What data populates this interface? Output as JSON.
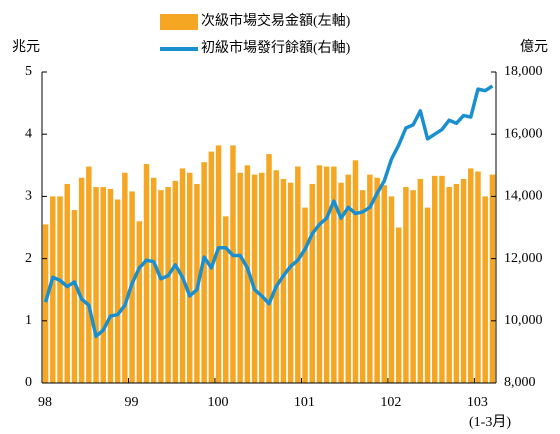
{
  "chart_data": {
    "type": "bar",
    "y_label": "兆元",
    "y2_label": "億元",
    "note": "(1-3月)",
    "categories": [
      "98",
      null,
      null,
      null,
      null,
      null,
      null,
      null,
      null,
      null,
      null,
      null,
      "99",
      null,
      null,
      null,
      null,
      null,
      null,
      null,
      null,
      null,
      null,
      null,
      "100",
      null,
      null,
      null,
      null,
      null,
      null,
      null,
      null,
      null,
      null,
      null,
      "101",
      null,
      null,
      null,
      null,
      null,
      null,
      null,
      null,
      null,
      null,
      null,
      "102",
      null,
      null,
      null,
      null,
      null,
      null,
      null,
      null,
      null,
      null,
      null,
      "103",
      null,
      null
    ],
    "series": [
      {
        "name": "次級市場交易金額(左軸)",
        "color": "#f5a623",
        "type": "bar",
        "values": [
          2.55,
          3.0,
          3.0,
          3.2,
          2.78,
          3.3,
          3.48,
          3.15,
          3.15,
          3.12,
          2.95,
          3.38,
          3.08,
          2.6,
          3.52,
          3.3,
          3.1,
          3.15,
          3.25,
          3.45,
          3.38,
          3.2,
          3.55,
          3.72,
          3.82,
          2.68,
          3.82,
          3.38,
          3.5,
          3.35,
          3.38,
          3.68,
          3.42,
          3.28,
          3.22,
          3.48,
          2.82,
          3.2,
          3.5,
          3.48,
          3.48,
          3.22,
          3.35,
          3.58,
          3.1,
          3.35,
          3.3,
          3.18,
          3.0,
          2.5,
          3.15,
          3.1,
          3.28,
          2.82,
          3.33,
          3.33,
          3.15,
          3.2,
          3.28,
          3.45,
          3.4,
          3.0,
          3.35
        ]
      },
      {
        "name": "初級市場發行餘額(右軸)",
        "color": "#1a8fd0",
        "type": "line",
        "axis": "y2",
        "values": [
          10600,
          11400,
          11300,
          11100,
          11250,
          10700,
          10500,
          9500,
          9700,
          10150,
          10200,
          10500,
          11200,
          11700,
          11950,
          11900,
          11350,
          11450,
          11800,
          11400,
          10800,
          11000,
          12050,
          11700,
          12350,
          12350,
          12100,
          12100,
          11700,
          11000,
          10800,
          10550,
          11100,
          11450,
          11750,
          11950,
          12300,
          12800,
          13100,
          13300,
          13850,
          13300,
          13650,
          13450,
          13500,
          13650,
          14100,
          14500,
          15200,
          15650,
          16200,
          16300,
          16750,
          15850,
          16000,
          16150,
          16450,
          16350,
          16600,
          16550,
          17450,
          17400,
          17550
        ]
      }
    ],
    "ylim": [
      0,
      5
    ],
    "yticks": [
      0,
      1,
      2,
      3,
      4,
      5
    ],
    "y2lim": [
      8000,
      18000
    ],
    "y2ticks": [
      {
        "value": 8000,
        "label": "8,000"
      },
      {
        "value": 10000,
        "label": "10,000"
      },
      {
        "value": 12000,
        "label": "12,000"
      },
      {
        "value": 14000,
        "label": "14,000"
      },
      {
        "value": 16000,
        "label": "16,000"
      },
      {
        "value": 18000,
        "label": "18,000"
      }
    ]
  }
}
